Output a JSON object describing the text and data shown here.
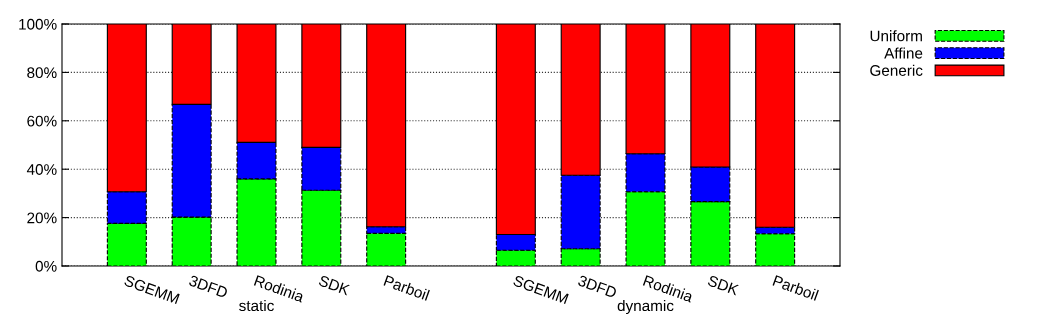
{
  "chart_data": {
    "type": "bar",
    "stacked": true,
    "categories": [
      "SGEMM",
      "3DFD",
      "Rodinia",
      "SDK",
      "Parboil",
      null,
      "SGEMM",
      "3DFD",
      "Rodinia",
      "SDK",
      "Parboil"
    ],
    "series": [
      {
        "name": "Uniform",
        "color": "#00ff00",
        "line_style": "dashed",
        "values": [
          17.6,
          20.2,
          36,
          31.3,
          13.5,
          null,
          6.5,
          7.1,
          30.7,
          26.6,
          13.3
        ]
      },
      {
        "name": "Affine",
        "color": "#0000ff",
        "line_style": "dashed",
        "values": [
          13.1,
          46.6,
          15.1,
          17.7,
          2.7,
          null,
          6.5,
          30.4,
          15.7,
          14.3,
          2.7
        ]
      },
      {
        "name": "Generic",
        "color": "#ff0000",
        "line_style": "solid",
        "values": [
          69.3,
          33.2,
          48.9,
          51,
          83.8,
          null,
          87,
          62.5,
          53.6,
          59.1,
          84
        ]
      }
    ],
    "annotations": [
      "static",
      "dynamic"
    ],
    "ylim": [
      0,
      100
    ],
    "yticks": [
      {
        "value": 0,
        "label": "0%"
      },
      {
        "value": 20,
        "label": "20%"
      },
      {
        "value": 40,
        "label": "40%"
      },
      {
        "value": 60,
        "label": "60%"
      },
      {
        "value": 80,
        "label": "80%"
      },
      {
        "value": 100,
        "label": "100%"
      }
    ],
    "grid": "y",
    "legend": "top right"
  }
}
